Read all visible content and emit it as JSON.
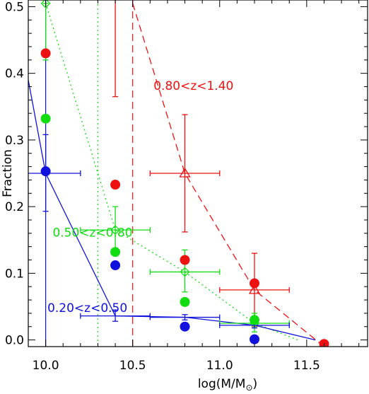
{
  "chart_data": {
    "type": "scatter",
    "xlabel": "log(M/M",
    "xlabel_sub": "⊙",
    "xlabel_close": ")",
    "ylabel": "Fraction",
    "xlim": [
      9.9,
      11.85
    ],
    "ylim": [
      -0.01,
      0.51
    ],
    "x_ticks": [
      10.0,
      10.5,
      11.0,
      11.5
    ],
    "x_tick_labels": [
      "10.0",
      "10.5",
      "11.0",
      "11.5"
    ],
    "y_ticks": [
      0.0,
      0.1,
      0.2,
      0.3,
      0.4,
      0.5
    ],
    "y_tick_labels": [
      "0.0",
      "0.1",
      "0.2",
      "0.3",
      "0.4",
      "0.5"
    ],
    "colors": {
      "red": "#ee1111",
      "green": "#11dd11",
      "blue": "#1111dd"
    },
    "annotations": [
      {
        "text": "0.80<z<1.40",
        "color": "red",
        "x": 10.62,
        "y": 0.375
      },
      {
        "text": "0.50<z<0.80",
        "color": "green",
        "x": 10.04,
        "y": 0.155
      },
      {
        "text": "0.20<z<0.50",
        "color": "blue",
        "x": 10.01,
        "y": 0.042
      }
    ],
    "series": [
      {
        "color": "red",
        "marker": "triangle",
        "line": "dashed",
        "points": [
          {
            "x": 10.4,
            "y": 0.53,
            "xerr": 0.0,
            "ylo": 0.365,
            "yhi": 0.53
          },
          {
            "x": 10.8,
            "y": 0.25,
            "xerr": 0.2,
            "ylo": 0.162,
            "yhi": 0.338
          },
          {
            "x": 11.2,
            "y": 0.075,
            "xerr": 0.2,
            "ylo": 0.02,
            "yhi": 0.13
          }
        ],
        "model": [
          [
            10.5,
            0.505
          ],
          [
            10.8,
            0.25
          ],
          [
            11.2,
            0.075
          ],
          [
            11.6,
            -0.01
          ]
        ]
      },
      {
        "color": "green",
        "marker": "diamond",
        "line": "dotted",
        "points": [
          {
            "x": 10.0,
            "y": 0.505,
            "xerr": 0.0,
            "ylo": 0.42,
            "yhi": 0.505
          },
          {
            "x": 10.4,
            "y": 0.165,
            "xerr": 0.2,
            "ylo": 0.13,
            "yhi": 0.2
          },
          {
            "x": 10.8,
            "y": 0.102,
            "xerr": 0.2,
            "ylo": 0.072,
            "yhi": 0.135
          },
          {
            "x": 11.2,
            "y": 0.025,
            "xerr": 0.2,
            "ylo": 0.012,
            "yhi": 0.04
          }
        ],
        "model": [
          [
            10.0,
            0.505
          ],
          [
            10.4,
            0.165
          ],
          [
            10.8,
            0.102
          ],
          [
            11.2,
            0.025
          ],
          [
            11.45,
            0.0
          ]
        ]
      },
      {
        "color": "blue",
        "marker": "plus",
        "line": "solid",
        "points": [
          {
            "x": 10.0,
            "y": 0.25,
            "xerr": 0.2,
            "ylo": 0.193,
            "yhi": 0.308
          },
          {
            "x": 10.4,
            "y": 0.036,
            "xerr": 0.2,
            "ylo": 0.028,
            "yhi": 0.045
          },
          {
            "x": 10.8,
            "y": 0.034,
            "xerr": 0.2,
            "ylo": 0.03,
            "yhi": 0.038
          },
          {
            "x": 11.2,
            "y": 0.022,
            "xerr": 0.2,
            "ylo": 0.018,
            "yhi": 0.026
          }
        ],
        "model": [
          [
            9.9,
            0.39
          ],
          [
            10.0,
            0.25
          ],
          [
            10.4,
            0.036
          ],
          [
            10.8,
            0.034
          ],
          [
            11.2,
            0.022
          ],
          [
            11.55,
            0.0
          ]
        ]
      }
    ],
    "filled_dots": [
      {
        "color": "red",
        "points": [
          [
            10.0,
            0.43
          ],
          [
            10.4,
            0.233
          ],
          [
            10.8,
            0.12
          ],
          [
            11.2,
            0.085
          ],
          [
            11.6,
            -0.006
          ]
        ]
      },
      {
        "color": "green",
        "points": [
          [
            10.0,
            0.332
          ],
          [
            10.4,
            0.132
          ],
          [
            10.8,
            0.057
          ],
          [
            11.2,
            0.03
          ]
        ]
      },
      {
        "color": "blue",
        "points": [
          [
            10.0,
            0.253
          ],
          [
            10.4,
            0.112
          ],
          [
            10.8,
            0.02
          ],
          [
            11.2,
            0.001
          ]
        ]
      }
    ],
    "vertical_lines": [
      {
        "x": 10.0,
        "color": "blue",
        "style": "solid"
      },
      {
        "x": 10.3,
        "color": "green",
        "style": "dotted"
      },
      {
        "x": 10.5,
        "color": "red",
        "style": "dashed"
      }
    ]
  }
}
